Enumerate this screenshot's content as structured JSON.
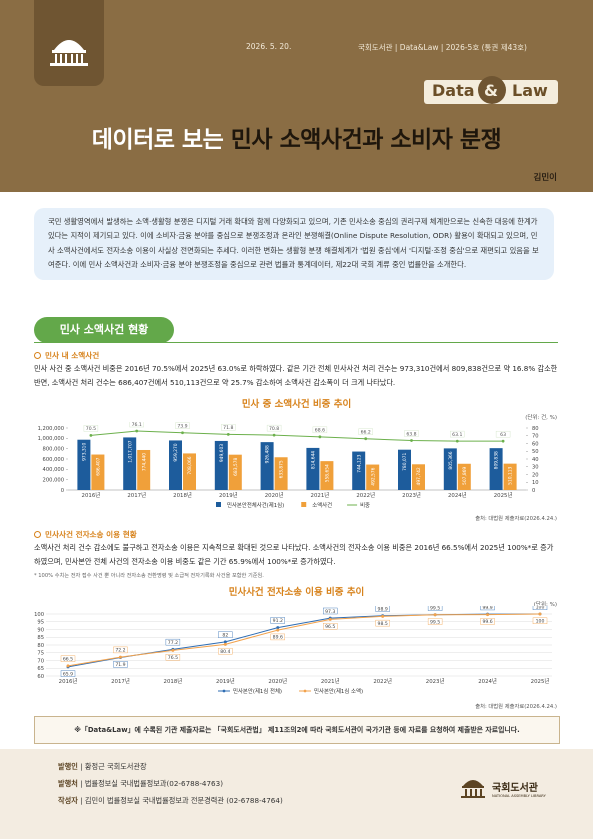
{
  "header": {
    "date": "2026. 5. 20.",
    "issue": "국회도서관 | Data&Law | 2026-5호 (통권 제43호)",
    "badge": [
      "Data",
      "&",
      "Law"
    ],
    "title_lead": "데이터로 보는",
    "title_main": "민사 소액사건과 소비자 분쟁",
    "author": "김민이"
  },
  "intro": "국민 생활영역에서 발생하는 소액·생활형 분쟁은 디지털 거래 확대와 함께 다양화되고 있으며, 기존 민사소송 중심의 권리구제 체계만으로는 신속한 대응에 한계가 있다는 지적이 제기되고 있다. 이에 소비자·금융 분야를 중심으로 분쟁조정과 온라인 분쟁해결(Online Dispute Resolution, ODR) 활용이 확대되고 있으며, 민사 소액사건에서도 전자소송 이용이 사실상 전면화되는 추세다. 이러한 변화는 생활형 분쟁 해결체계가 '법원 중심'에서 '디지털·조정 중심'으로 재편되고 있음을 보여준다. 이에 민사 소액사건과 소비자·금융 분야 분쟁조정을 중심으로 관련 법률과 통계데이터, 제22대 국회 계류 중인 법률안을 소개한다.",
  "section": "민사 소액사건 현황",
  "sub1": {
    "heading": "민사 내 소액사건",
    "text": "민사 사건 중 소액사건 비중은 2016년 70.5%에서 2025년 63.0%로 하락하였다. 같은 기간 전체 민사사건 처리 건수는 973,310건에서 809,838건으로 약 16.8% 감소한 반면, 소액사건 처리 건수는 686,407건에서 510,113건으로 약 25.7% 감소하여 소액사건 감소폭이 더 크게 나타났다."
  },
  "sub2": {
    "heading": "민사사건 전자소송 이용 현황",
    "text": "소액사건 처리 건수 감소에도 불구하고 전자소송 이용은 지속적으로 확대된 것으로 나타났다. 소액사건의 전자소송 이용 비중은 2016년 66.5%에서 2025년 100%*로 증가하였으며, 민사본안 전체 사건의 전자소송 이용 비중도 같은 기간 65.9%에서 100%*로 증가하였다.",
    "note": "* 100% 수치는 전자 접수 사건 뿐 아니라 전자소송 전환명령 및 소급적 전자기록화 사건을 포함한 기준임."
  },
  "chart_data": [
    {
      "type": "bar",
      "title": "민사 중 소액사건 비중 추이",
      "unit": "(단위: 건, %)",
      "source": "출처: 대법원 제출자료(2026.4.24.)",
      "categories": [
        "2016년",
        "2017년",
        "2018년",
        "2019년",
        "2020년",
        "2021년",
        "2022년",
        "2023년",
        "2024년",
        "2025년"
      ],
      "series": [
        {
          "name": "민사본안전체사건(제1심)",
          "color": "#1d5c9c",
          "values": [
            973310,
            1017707,
            959270,
            949603,
            926488,
            814644,
            744123,
            780071,
            805366,
            809838
          ],
          "value_labels": [
            "973,310",
            "1,017,707",
            "959,270",
            "949,603",
            "926,488",
            "814,644",
            "744,123",
            "780,071",
            "805,366",
            "809,838"
          ]
        },
        {
          "name": "소액사건",
          "color": "#f0a03a",
          "values": [
            686407,
            774440,
            708066,
            683578,
            633875,
            558654,
            492576,
            497742,
            507869,
            510113
          ],
          "value_labels": [
            "686,407",
            "774,440",
            "708,066",
            "683,578",
            "633,875",
            "558,654",
            "492,576",
            "497,742",
            "507,869",
            "510,113"
          ]
        },
        {
          "name": "비중",
          "color": "#6cb04c",
          "type": "line",
          "axis": "y2",
          "values": [
            70.5,
            76.1,
            73.9,
            71.8,
            70.8,
            68.6,
            66.2,
            63.8,
            63.1,
            63.0
          ]
        }
      ],
      "ylim": [
        0,
        1200000
      ],
      "yticks": [
        0,
        {
          "value": 200000,
          "label": "200,000"
        },
        {
          "value": 400000,
          "label": "400,000"
        },
        {
          "value": 600000,
          "label": "600,000"
        },
        {
          "value": 800000,
          "label": "800,000"
        },
        {
          "value": 1000000,
          "label": "1,000,000"
        },
        {
          "value": 1200000,
          "label": "1,200,000"
        }
      ],
      "y2lim": [
        0,
        80
      ],
      "y2ticks": [
        0,
        10,
        20,
        30,
        40,
        50,
        60,
        70,
        80
      ]
    },
    {
      "type": "line",
      "title": "민사사건 전자소송 이용 비중 추이",
      "unit": "(단위: %)",
      "source": "출처: 대법원 제출자료(2026.4.24.)",
      "categories": [
        "2016년",
        "2017년",
        "2018년",
        "2019년",
        "2020년",
        "2021년",
        "2022년",
        "2023년",
        "2024년",
        "2025년"
      ],
      "series": [
        {
          "name": "민사본안(제1심 전체)",
          "color": "#2f6db3",
          "values": [
            65.9,
            71.9,
            77.2,
            82.0,
            91.2,
            97.3,
            98.9,
            99.5,
            99.9,
            100
          ]
        },
        {
          "name": "민사본안(제1심 소액)",
          "color": "#f2a24c",
          "values": [
            66.5,
            72.2,
            76.5,
            80.4,
            89.6,
            96.5,
            98.5,
            99.5,
            99.6,
            100
          ]
        }
      ],
      "ylim": [
        60,
        100
      ],
      "yticks": [
        60,
        65,
        70,
        75,
        80,
        85,
        90,
        95,
        100
      ],
      "grid": true
    }
  ],
  "footnote": "※「Data&Law」에 수록된 기관 제출자료는 「국회도서관법」 제11조의2에 따라 국회도서관이 국가기관 등에 자료를 요청하여 제출받은 자료입니다.",
  "footer": {
    "rows": [
      {
        "label": "발행인",
        "text": "황정근 국회도서관장"
      },
      {
        "label": "발행처",
        "text": "법률정보실 국내법률정보과(02-6788-4763)"
      },
      {
        "label": "작성자",
        "text": "김민이 법률정보실 국내법률정보과 전문경력관 (02-6788-4764)"
      }
    ],
    "logo": "국회도서관",
    "logo_en": "NATIONAL ASSEMBLY LIBRARY"
  }
}
